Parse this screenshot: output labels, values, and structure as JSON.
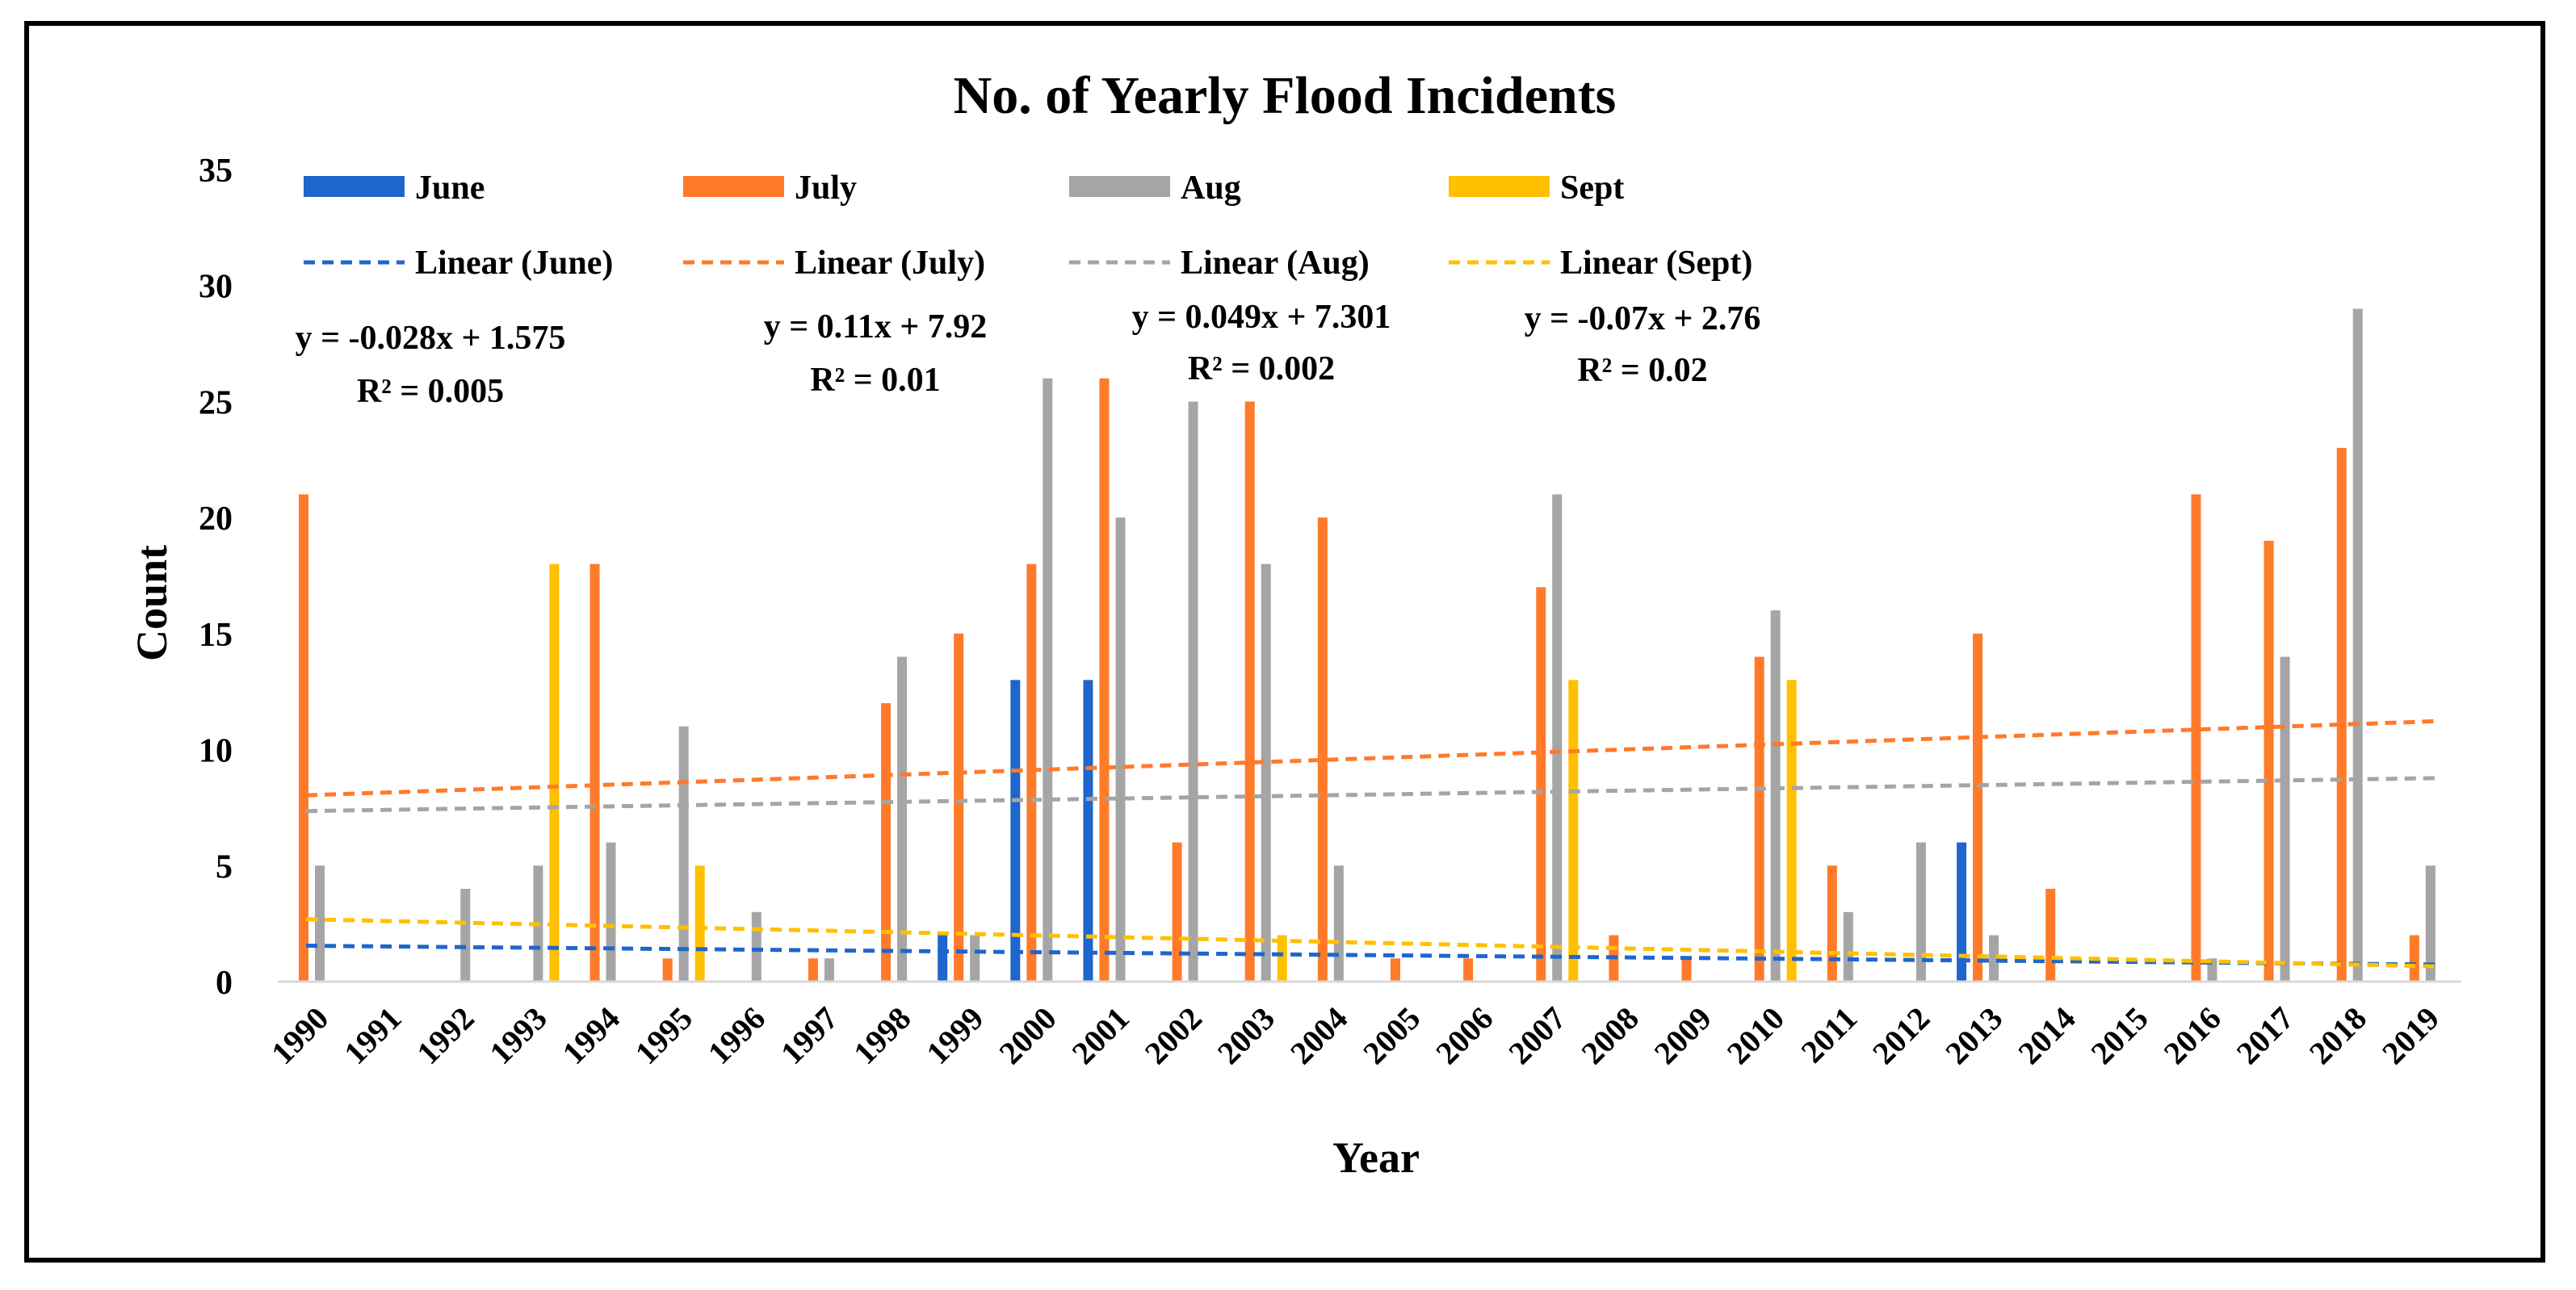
{
  "chart_data": {
    "type": "bar",
    "title": "No. of Yearly Flood Incidents",
    "xlabel": "Year",
    "ylabel": "Count",
    "ylim": [
      0,
      35
    ],
    "yticks": [
      0,
      5,
      10,
      15,
      20,
      25,
      30,
      35
    ],
    "grid": false,
    "legend_position": "top",
    "categories": [
      "1990",
      "1991",
      "1992",
      "1993",
      "1994",
      "1995",
      "1996",
      "1997",
      "1998",
      "1999",
      "2000",
      "2001",
      "2002",
      "2003",
      "2004",
      "2005",
      "2006",
      "2007",
      "2008",
      "2009",
      "2010",
      "2011",
      "2012",
      "2013",
      "2014",
      "2015",
      "2016",
      "2017",
      "2018",
      "2019"
    ],
    "series": [
      {
        "name": "June",
        "color": "#1F66CC",
        "values": [
          0,
          0,
          0,
          0,
          0,
          0,
          0,
          0,
          0,
          2,
          13,
          13,
          0,
          0,
          0,
          0,
          0,
          0,
          0,
          0,
          0,
          0,
          0,
          6,
          0,
          0,
          0,
          0,
          0,
          0
        ]
      },
      {
        "name": "July",
        "color": "#FF7A29",
        "values": [
          21,
          0,
          0,
          0,
          18,
          1,
          0,
          1,
          12,
          15,
          18,
          26,
          6,
          25,
          20,
          1,
          1,
          17,
          2,
          1,
          14,
          5,
          0,
          15,
          4,
          0,
          21,
          19,
          23,
          2
        ]
      },
      {
        "name": "Aug",
        "color": "#A5A5A5",
        "values": [
          5,
          0,
          4,
          5,
          6,
          11,
          3,
          1,
          14,
          2,
          26,
          20,
          25,
          18,
          5,
          0,
          0,
          21,
          0,
          0,
          16,
          3,
          6,
          2,
          0,
          0,
          1,
          14,
          29,
          5
        ]
      },
      {
        "name": "Sept",
        "color": "#FFC000",
        "values": [
          0,
          0,
          0,
          18,
          0,
          5,
          0,
          0,
          0,
          0,
          0,
          0,
          0,
          2,
          0,
          0,
          0,
          13,
          0,
          0,
          13,
          0,
          0,
          0,
          0,
          0,
          0,
          0,
          0,
          0
        ]
      }
    ],
    "trendlines": [
      {
        "name": "Linear (June)",
        "color": "#1F66CC",
        "slope": -0.028,
        "intercept": 1.575,
        "equation": "y = -0.028x + 1.575",
        "r2": "R² = 0.005"
      },
      {
        "name": "Linear (July)",
        "color": "#FF7A29",
        "slope": 0.11,
        "intercept": 7.92,
        "equation": "y = 0.11x + 7.92",
        "r2": "R² = 0.01"
      },
      {
        "name": "Linear (Aug)",
        "color": "#A5A5A5",
        "slope": 0.049,
        "intercept": 7.301,
        "equation": "y = 0.049x + 7.301",
        "r2": "R² = 0.002"
      },
      {
        "name": "Linear (Sept)",
        "color": "#FFC000",
        "slope": -0.07,
        "intercept": 2.76,
        "equation": "y = -0.07x + 2.76",
        "r2": "R² = 0.02"
      }
    ]
  }
}
